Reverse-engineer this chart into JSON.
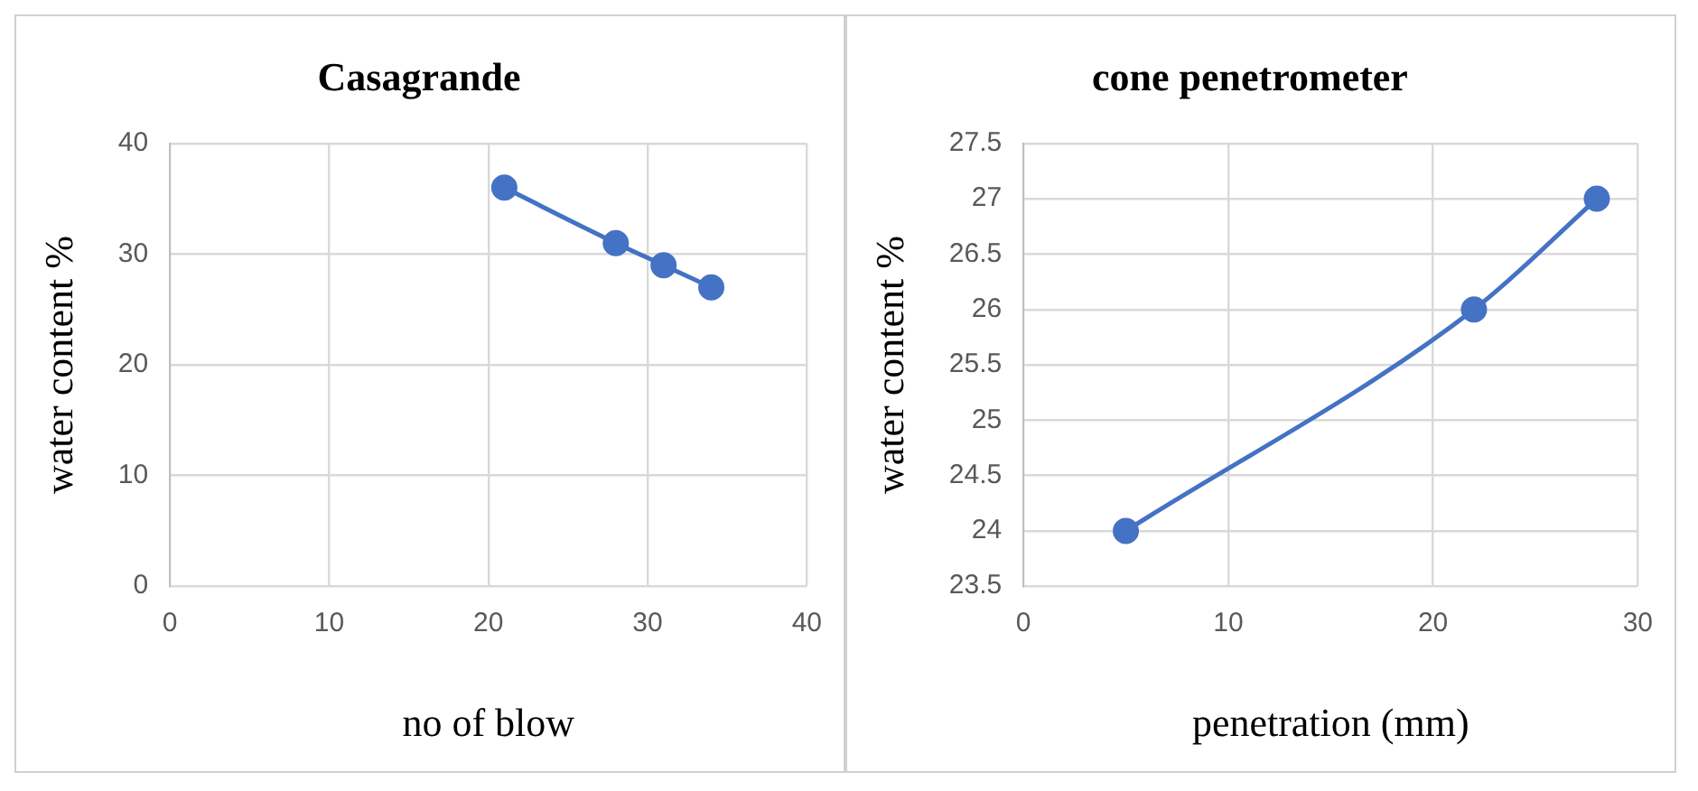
{
  "chart_data": [
    {
      "type": "line",
      "title": "Casagrande",
      "xlabel": "no of blow",
      "ylabel": "water content %",
      "x": [
        21,
        28,
        31,
        34
      ],
      "series": [
        {
          "color": "#4472c4",
          "values": [
            36,
            31,
            29,
            27
          ]
        }
      ],
      "xlim": [
        0,
        40
      ],
      "xticks": [
        0,
        10,
        20,
        30,
        40
      ],
      "ylim": [
        0,
        40
      ],
      "yticks": [
        0,
        10,
        20,
        30,
        40
      ],
      "grid": true,
      "marker": "circle",
      "line_style": "solid"
    },
    {
      "type": "line",
      "title": "cone penetrometer",
      "xlabel": "penetration (mm)",
      "ylabel": "water content %",
      "x": [
        5,
        22,
        28
      ],
      "series": [
        {
          "color": "#4472c4",
          "values": [
            24,
            26,
            27
          ]
        }
      ],
      "xlim": [
        0,
        30
      ],
      "xticks": [
        0,
        10,
        20,
        30
      ],
      "ylim": [
        23.5,
        27.5
      ],
      "yticks": [
        23.5,
        24,
        24.5,
        25,
        25.5,
        26,
        26.5,
        27,
        27.5
      ],
      "grid": true,
      "marker": "circle",
      "line_style": "solid"
    }
  ]
}
